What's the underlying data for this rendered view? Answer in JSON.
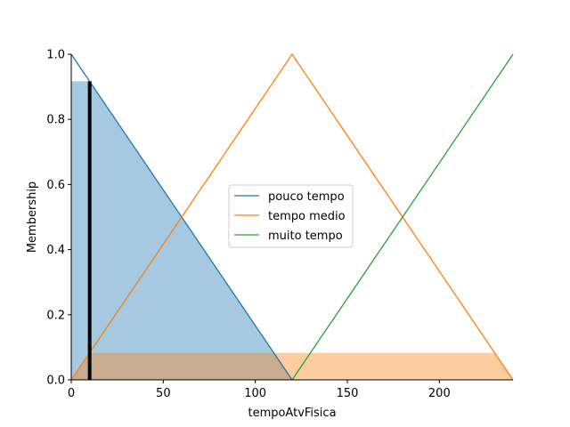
{
  "chart_data": {
    "type": "line",
    "title": "",
    "xlabel": "tempoAtvFisica",
    "ylabel": "Membership",
    "xlim": [
      0,
      240
    ],
    "ylim": [
      0,
      1.0
    ],
    "xticks": [
      0,
      50,
      100,
      150,
      200
    ],
    "xtick_labels": [
      "0",
      "50",
      "100",
      "150",
      "200"
    ],
    "yticks": [
      0.0,
      0.2,
      0.4,
      0.6,
      0.8,
      1.0
    ],
    "ytick_labels": [
      "0.0",
      "0.2",
      "0.4",
      "0.6",
      "0.8",
      "1.0"
    ],
    "grid": false,
    "legend_position": "center",
    "series": [
      {
        "name": "pouco tempo",
        "color": "#1f77b4",
        "x": [
          0,
          120
        ],
        "y": [
          1.0,
          0.0
        ]
      },
      {
        "name": "tempo medio",
        "color": "#ff7f0e",
        "x": [
          0,
          120,
          240
        ],
        "y": [
          0.0,
          1.0,
          0.0
        ]
      },
      {
        "name": "muito tempo",
        "color": "#2ca02c",
        "x": [
          120,
          240
        ],
        "y": [
          0.0,
          1.0
        ]
      }
    ],
    "activation_fills": [
      {
        "series": "pouco tempo",
        "color": "#1f77b4",
        "opacity": 0.4,
        "level": 0.917
      },
      {
        "series": "tempo medio",
        "color": "#ff7f0e",
        "opacity": 0.4,
        "level": 0.083
      }
    ],
    "input_marker": {
      "x": 10,
      "height": 0.917,
      "color": "#000000"
    }
  }
}
